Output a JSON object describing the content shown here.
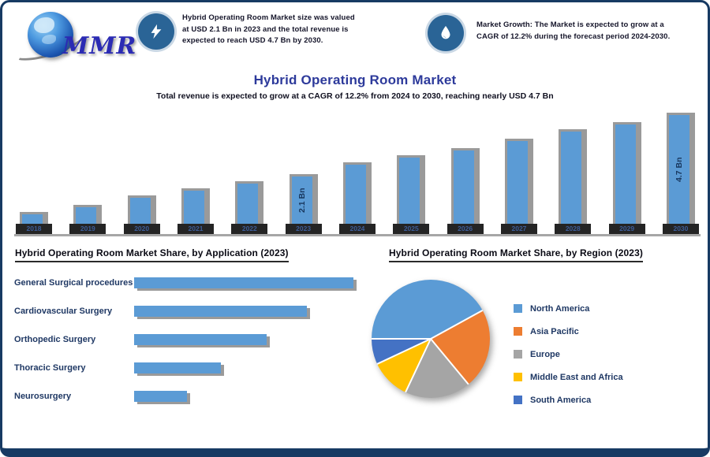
{
  "brand": {
    "logo_text": "MMR"
  },
  "header": {
    "stat1": {
      "icon": "lightning-bolt",
      "text": "Hybrid Operating Room Market size was valued at USD 2.1 Bn in 2023 and the total revenue is expected to reach USD 4.7 Bn by 2030."
    },
    "stat2": {
      "icon": "droplet",
      "text": "Market Growth: The Market is expected to grow at a CAGR of 12.2% during the forecast period 2024-2030."
    }
  },
  "title": "Hybrid Operating Room Market",
  "subtitle": "Total revenue is expected to grow at a CAGR of 12.2% from 2024 to 2030, reaching nearly USD 4.7 Bn",
  "chart_data": [
    {
      "type": "bar",
      "title": "Hybrid Operating Room Market Revenue (USD Bn)",
      "categories": [
        "2018",
        "2019",
        "2020",
        "2021",
        "2022",
        "2023",
        "2024",
        "2025",
        "2026",
        "2027",
        "2028",
        "2029",
        "2030"
      ],
      "values": [
        0.5,
        0.8,
        1.2,
        1.5,
        1.8,
        2.1,
        2.6,
        2.9,
        3.2,
        3.6,
        4.0,
        4.3,
        4.7
      ],
      "annotations": [
        {
          "category": "2023",
          "label": "2.1 Bn"
        },
        {
          "category": "2030",
          "label": "4.7 Bn"
        }
      ],
      "bar_color": "#5b9bd5",
      "ylim": [
        0,
        5
      ],
      "grid": false,
      "xlabel": "",
      "ylabel": ""
    },
    {
      "type": "bar",
      "orientation": "horizontal",
      "title": "Hybrid Operating Room Market Share, by Application (2023)",
      "categories": [
        "General Surgical procedures",
        "Cardiovascular Surgery",
        "Orthopedic Surgery",
        "Thoracic Surgery",
        "Neurosurgery"
      ],
      "values": [
        33,
        26,
        20,
        13,
        8
      ],
      "bar_color": "#5b9bd5",
      "xlabel": "",
      "ylabel": "",
      "grid": false
    },
    {
      "type": "pie",
      "title": "Hybrid Operating Room Market Share, by Region (2023)",
      "labels": [
        "North America",
        "Asia Pacific",
        "Europe",
        "Middle East and Africa",
        "South America"
      ],
      "values": [
        42,
        22,
        18,
        11,
        7
      ],
      "colors": [
        "#5b9bd5",
        "#ed7d31",
        "#a5a5a5",
        "#ffc000",
        "#4472c4"
      ],
      "start_angle_deg": 270,
      "legend_position": "right"
    }
  ],
  "icons": {
    "stat1": "lightning-bolt-icon",
    "stat2": "droplet-icon"
  },
  "colors": {
    "frame_border": "#173a63",
    "title_blue": "#2d3a9b",
    "bar_blue": "#5b9bd5",
    "bar_shadow_gray": "#9a9a9a",
    "navy_text": "#1f3864",
    "icon_circle": "#2a6496"
  }
}
